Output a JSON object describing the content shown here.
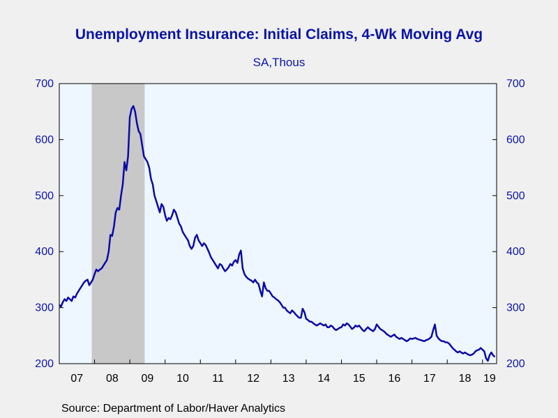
{
  "header": {
    "title": "Unemployment Insurance: Initial Claims, 4-Wk Moving Avg",
    "subtitle": "SA,Thous"
  },
  "footer": {
    "source": "Source:  Department of Labor/Haver Analytics"
  },
  "colors": {
    "line": "#0a0aa8",
    "axis_text": "#0a14a8",
    "plot_background": "#eef6ff",
    "recession_shade": "#c8c8c8"
  },
  "chart_data": {
    "type": "line",
    "title": "Unemployment Insurance: Initial Claims, 4-Wk Moving Avg",
    "subtitle": "SA,Thous",
    "xlabel": "",
    "ylabel": "",
    "xlim": [
      2007.0,
      2019.4
    ],
    "ylim": [
      200,
      700
    ],
    "yticks": [
      200,
      300,
      400,
      500,
      600,
      700
    ],
    "xticks": [
      {
        "label": "07",
        "x": 2007
      },
      {
        "label": "08",
        "x": 2008
      },
      {
        "label": "09",
        "x": 2009
      },
      {
        "label": "10",
        "x": 2010
      },
      {
        "label": "11",
        "x": 2011
      },
      {
        "label": "12",
        "x": 2012
      },
      {
        "label": "13",
        "x": 2013
      },
      {
        "label": "14",
        "x": 2014
      },
      {
        "label": "15",
        "x": 2015
      },
      {
        "label": "16",
        "x": 2016
      },
      {
        "label": "17",
        "x": 2017
      },
      {
        "label": "18",
        "x": 2018
      },
      {
        "label": "19",
        "x": 2019
      }
    ],
    "right_axis": true,
    "grid": false,
    "legend": "none",
    "recession": {
      "start": 2007.92,
      "end": 2009.42
    },
    "series": [
      {
        "x": [
          2007.0,
          2007.05,
          2007.1,
          2007.15,
          2007.2,
          2007.25,
          2007.3,
          2007.35,
          2007.4,
          2007.45,
          2007.5,
          2007.55,
          2007.6,
          2007.65,
          2007.7,
          2007.75,
          2007.8,
          2007.85,
          2007.9,
          2007.95,
          2008.0,
          2008.05,
          2008.1,
          2008.15,
          2008.2,
          2008.25,
          2008.3,
          2008.35,
          2008.4,
          2008.45,
          2008.5,
          2008.55,
          2008.6,
          2008.65,
          2008.7,
          2008.75,
          2008.8,
          2008.85,
          2008.9,
          2008.95,
          2009.0,
          2009.05,
          2009.1,
          2009.15,
          2009.2,
          2009.25,
          2009.3,
          2009.35,
          2009.4,
          2009.45,
          2009.5,
          2009.55,
          2009.6,
          2009.65,
          2009.7,
          2009.75,
          2009.8,
          2009.85,
          2009.9,
          2009.95,
          2010.0,
          2010.05,
          2010.1,
          2010.15,
          2010.2,
          2010.25,
          2010.3,
          2010.35,
          2010.4,
          2010.45,
          2010.5,
          2010.55,
          2010.6,
          2010.65,
          2010.7,
          2010.75,
          2010.8,
          2010.85,
          2010.9,
          2010.95,
          2011.0,
          2011.05,
          2011.1,
          2011.15,
          2011.2,
          2011.25,
          2011.3,
          2011.35,
          2011.4,
          2011.45,
          2011.5,
          2011.55,
          2011.6,
          2011.65,
          2011.7,
          2011.75,
          2011.8,
          2011.85,
          2011.9,
          2011.95,
          2012.0,
          2012.05,
          2012.1,
          2012.15,
          2012.2,
          2012.25,
          2012.3,
          2012.35,
          2012.4,
          2012.45,
          2012.5,
          2012.55,
          2012.6,
          2012.65,
          2012.7,
          2012.75,
          2012.8,
          2012.85,
          2012.9,
          2012.95,
          2013.0,
          2013.05,
          2013.1,
          2013.15,
          2013.2,
          2013.25,
          2013.3,
          2013.35,
          2013.4,
          2013.45,
          2013.5,
          2013.55,
          2013.6,
          2013.65,
          2013.7,
          2013.75,
          2013.8,
          2013.85,
          2013.9,
          2013.95,
          2014.0,
          2014.05,
          2014.1,
          2014.15,
          2014.2,
          2014.25,
          2014.3,
          2014.35,
          2014.4,
          2014.45,
          2014.5,
          2014.55,
          2014.6,
          2014.65,
          2014.7,
          2014.75,
          2014.8,
          2014.85,
          2014.9,
          2014.95,
          2015.0,
          2015.05,
          2015.1,
          2015.15,
          2015.2,
          2015.25,
          2015.3,
          2015.35,
          2015.4,
          2015.45,
          2015.5,
          2015.55,
          2015.6,
          2015.65,
          2015.7,
          2015.75,
          2015.8,
          2015.85,
          2015.9,
          2015.95,
          2016.0,
          2016.05,
          2016.1,
          2016.15,
          2016.2,
          2016.25,
          2016.3,
          2016.35,
          2016.4,
          2016.45,
          2016.5,
          2016.55,
          2016.6,
          2016.65,
          2016.7,
          2016.75,
          2016.8,
          2016.85,
          2016.9,
          2016.95,
          2017.0,
          2017.05,
          2017.1,
          2017.15,
          2017.2,
          2017.25,
          2017.3,
          2017.35,
          2017.4,
          2017.45,
          2017.5,
          2017.55,
          2017.6,
          2017.65,
          2017.7,
          2017.75,
          2017.8,
          2017.85,
          2017.9,
          2017.95,
          2018.0,
          2018.05,
          2018.1,
          2018.15,
          2018.2,
          2018.25,
          2018.3,
          2018.35,
          2018.4,
          2018.45,
          2018.5,
          2018.55,
          2018.6,
          2018.65,
          2018.7,
          2018.75,
          2018.8,
          2018.85,
          2018.9,
          2018.95,
          2019.0,
          2019.05,
          2019.1,
          2019.15,
          2019.2,
          2019.25,
          2019.3,
          2019.35
        ],
        "y": [
          305,
          302,
          310,
          315,
          312,
          318,
          315,
          312,
          320,
          318,
          325,
          330,
          335,
          340,
          345,
          348,
          350,
          340,
          345,
          350,
          360,
          368,
          365,
          368,
          370,
          375,
          380,
          385,
          400,
          430,
          428,
          445,
          470,
          478,
          475,
          500,
          520,
          560,
          545,
          570,
          640,
          655,
          660,
          650,
          630,
          615,
          610,
          590,
          570,
          565,
          560,
          550,
          530,
          520,
          500,
          490,
          480,
          470,
          485,
          480,
          465,
          455,
          460,
          458,
          465,
          475,
          470,
          460,
          450,
          445,
          435,
          430,
          425,
          420,
          410,
          405,
          410,
          425,
          430,
          420,
          415,
          410,
          415,
          412,
          405,
          398,
          390,
          385,
          380,
          375,
          370,
          378,
          376,
          370,
          365,
          368,
          372,
          378,
          375,
          382,
          385,
          380,
          395,
          402,
          370,
          360,
          355,
          352,
          350,
          348,
          345,
          350,
          345,
          342,
          330,
          320,
          345,
          335,
          330,
          330,
          325,
          320,
          318,
          315,
          313,
          310,
          305,
          300,
          300,
          295,
          292,
          290,
          295,
          292,
          288,
          285,
          282,
          282,
          298,
          292,
          280,
          278,
          275,
          275,
          272,
          270,
          268,
          270,
          272,
          270,
          268,
          270,
          265,
          265,
          268,
          266,
          262,
          260,
          262,
          264,
          265,
          270,
          268,
          272,
          270,
          266,
          262,
          264,
          268,
          266,
          268,
          264,
          260,
          258,
          262,
          265,
          262,
          260,
          258,
          262,
          270,
          266,
          262,
          260,
          258,
          255,
          252,
          250,
          248,
          250,
          252,
          248,
          246,
          244,
          246,
          244,
          242,
          240,
          242,
          245,
          244,
          245,
          246,
          244,
          243,
          242,
          241,
          240,
          242,
          243,
          245,
          248,
          260,
          270,
          250,
          245,
          242,
          240,
          240,
          238,
          238,
          236,
          232,
          228,
          225,
          222,
          220,
          222,
          220,
          218,
          220,
          218,
          216,
          215,
          216,
          218,
          222,
          224,
          225,
          228,
          225,
          222,
          210,
          205,
          215,
          220,
          215,
          212
        ]
      }
    ]
  }
}
